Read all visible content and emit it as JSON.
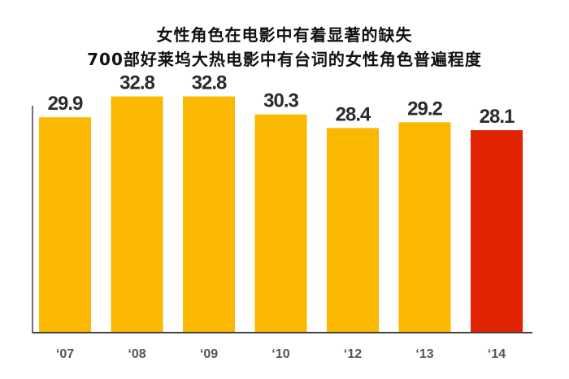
{
  "chart_data": {
    "type": "bar",
    "title": "女性角色在电影中有着显著的缺失",
    "subtitle": "700部好莱坞大热电影中有台词的女性角色普遍程度",
    "categories": [
      "‘07",
      "‘08",
      "‘09",
      "‘10",
      "‘12",
      "‘13",
      "‘14"
    ],
    "values": [
      29.9,
      32.8,
      32.8,
      30.3,
      28.4,
      29.2,
      28.1
    ],
    "value_labels": [
      "29.9",
      "32.8",
      "32.8",
      "30.3",
      "28.4",
      "29.2",
      "28.1"
    ],
    "colors": {
      "default": "#FBB800",
      "highlight": "#E02300",
      "axis": "#444444"
    },
    "highlight_index": 6,
    "ylim": [
      0,
      34
    ],
    "grid": false,
    "xlabel": "",
    "ylabel": ""
  }
}
